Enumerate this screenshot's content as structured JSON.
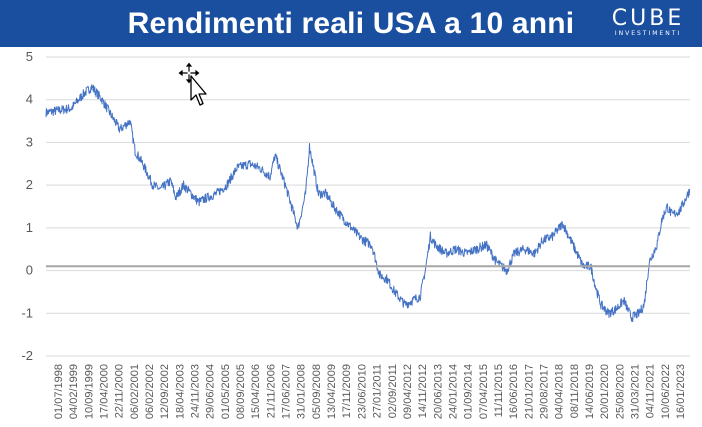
{
  "header": {
    "title": "Rendimenti reali USA a 10 anni",
    "logo_text": "CUBE",
    "logo_subtext": "INVESTIMENTI"
  },
  "colors": {
    "banner": "#1a4fa0",
    "series": "#4472c4",
    "grid": "#d9d9d9",
    "zero_line": "#a6a6a6",
    "axis_text": "#595959"
  },
  "chart_data": {
    "type": "line",
    "title": "",
    "xlabel": "",
    "ylabel": "",
    "ylim": [
      -2,
      5
    ],
    "yticks": [
      "5",
      "4",
      "3",
      "2",
      "1",
      "0",
      "-1",
      "-2"
    ],
    "grid": "horizontal",
    "legend": "none",
    "x_tick_labels": [
      "01/07/1998",
      "04/02/1999",
      "10/09/1999",
      "17/04/2000",
      "22/11/2000",
      "06/02/2001",
      "06/02/2002",
      "12/09/2002",
      "18/04/2003",
      "24/11/2003",
      "29/06/2004",
      "01/05/2005",
      "08/09/2005",
      "15/04/2006",
      "21/11/2006",
      "17/06/2007",
      "31/01/2008",
      "05/09/2008",
      "13/04/2009",
      "17/11/2009",
      "23/06/2010",
      "27/01/2011",
      "02/09/2011",
      "09/04/2012",
      "14/11/2012",
      "20/06/2013",
      "24/01/2014",
      "01/09/2014",
      "07/04/2015",
      "11/11/2015",
      "16/06/2016",
      "21/01/2017",
      "29/08/2017",
      "04/04/2018",
      "08/11/2018",
      "14/06/2019",
      "20/01/2020",
      "25/08/2020",
      "31/03/2021",
      "04/11/2021",
      "10/06/2022",
      "16/01/2023"
    ],
    "series": [
      {
        "name": "",
        "x": [
          1998.5,
          1999.0,
          1999.5,
          2000.0,
          2000.3,
          2000.7,
          2001.0,
          2001.4,
          2001.8,
          2002.0,
          2002.3,
          2002.7,
          2003.0,
          2003.4,
          2003.6,
          2003.9,
          2004.2,
          2004.5,
          2004.8,
          2005.2,
          2005.6,
          2006.0,
          2006.5,
          2006.9,
          2007.3,
          2007.5,
          2007.9,
          2008.1,
          2008.4,
          2008.7,
          2008.85,
          2008.95,
          2009.2,
          2009.5,
          2009.8,
          2010.2,
          2010.5,
          2010.8,
          2011.0,
          2011.3,
          2011.6,
          2011.9,
          2012.2,
          2012.6,
          2012.9,
          2013.2,
          2013.4,
          2013.6,
          2013.8,
          2014.2,
          2014.6,
          2015.0,
          2015.4,
          2015.8,
          2016.2,
          2016.6,
          2016.9,
          2017.3,
          2017.7,
          2018.0,
          2018.4,
          2018.8,
          2019.2,
          2019.6,
          2019.9,
          2020.1,
          2020.3,
          2020.6,
          2020.9,
          2021.2,
          2021.5,
          2021.8,
          2022.0,
          2022.2,
          2022.5,
          2022.7,
          2022.9,
          2023.1,
          2023.4,
          2023.8
        ],
        "values": [
          3.7,
          3.75,
          3.8,
          4.15,
          4.3,
          4.0,
          3.7,
          3.3,
          3.5,
          2.8,
          2.5,
          2.0,
          1.9,
          2.1,
          1.7,
          2.0,
          1.8,
          1.6,
          1.7,
          1.8,
          2.0,
          2.4,
          2.5,
          2.4,
          2.2,
          2.7,
          2.0,
          1.6,
          1.0,
          1.8,
          2.9,
          2.6,
          1.8,
          1.8,
          1.5,
          1.2,
          1.0,
          0.8,
          0.7,
          0.6,
          -0.1,
          -0.2,
          -0.5,
          -0.8,
          -0.7,
          -0.6,
          0.0,
          0.8,
          0.6,
          0.4,
          0.5,
          0.4,
          0.5,
          0.6,
          0.2,
          0.0,
          0.4,
          0.5,
          0.4,
          0.7,
          0.8,
          1.1,
          0.6,
          0.1,
          0.1,
          -0.4,
          -0.8,
          -1.0,
          -0.9,
          -0.7,
          -1.1,
          -1.0,
          -0.8,
          0.2,
          0.6,
          1.2,
          1.5,
          1.3,
          1.4,
          1.9
        ]
      }
    ],
    "reference_line": 0.1
  }
}
